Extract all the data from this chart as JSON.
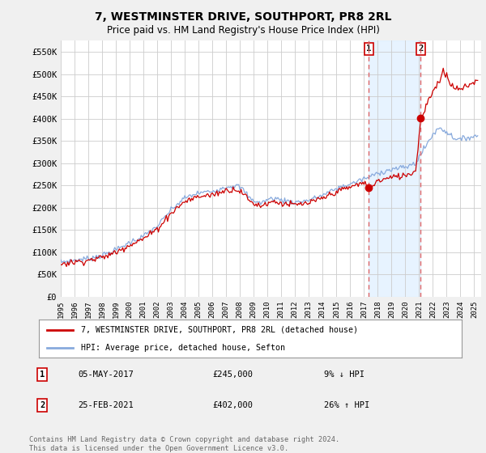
{
  "title": "7, WESTMINSTER DRIVE, SOUTHPORT, PR8 2RL",
  "subtitle": "Price paid vs. HM Land Registry's House Price Index (HPI)",
  "ylim": [
    0,
    575000
  ],
  "yticks": [
    0,
    50000,
    100000,
    150000,
    200000,
    250000,
    300000,
    350000,
    400000,
    450000,
    500000,
    550000
  ],
  "ytick_labels": [
    "£0",
    "£50K",
    "£100K",
    "£150K",
    "£200K",
    "£250K",
    "£300K",
    "£350K",
    "£400K",
    "£450K",
    "£500K",
    "£550K"
  ],
  "background_color": "#f0f0f0",
  "plot_bg_color": "#ffffff",
  "grid_color": "#cccccc",
  "red_line_color": "#cc0000",
  "blue_line_color": "#88aadd",
  "shade_color": "#ddeeff",
  "marker_color": "#cc0000",
  "dashed_line_color": "#dd6666",
  "sale1_year": 2017.35,
  "sale1_price": 245000,
  "sale1_label": "1",
  "sale2_year": 2021.12,
  "sale2_price": 402000,
  "sale2_label": "2",
  "legend_line1": "7, WESTMINSTER DRIVE, SOUTHPORT, PR8 2RL (detached house)",
  "legend_line2": "HPI: Average price, detached house, Sefton",
  "table_row1_num": "1",
  "table_row1_date": "05-MAY-2017",
  "table_row1_price": "£245,000",
  "table_row1_hpi": "9% ↓ HPI",
  "table_row2_num": "2",
  "table_row2_date": "25-FEB-2021",
  "table_row2_price": "£402,000",
  "table_row2_hpi": "26% ↑ HPI",
  "footer": "Contains HM Land Registry data © Crown copyright and database right 2024.\nThis data is licensed under the Open Government Licence v3.0.",
  "xlim_start": 1995.0,
  "xlim_end": 2025.5
}
